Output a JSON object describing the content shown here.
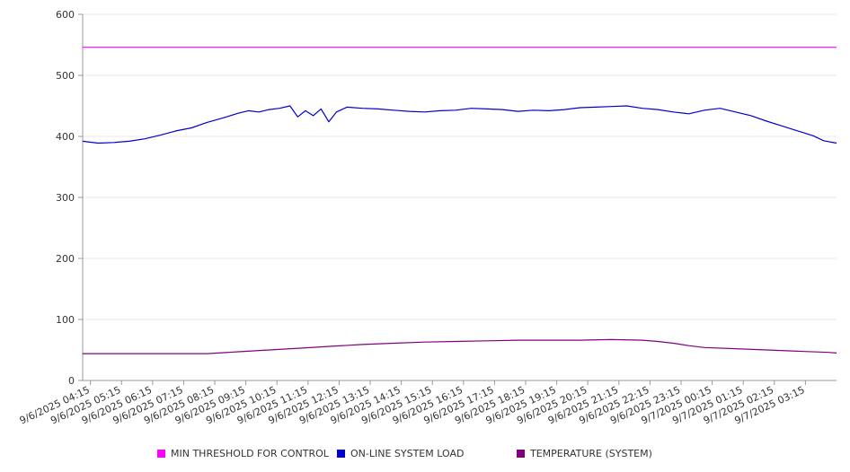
{
  "chart_data": {
    "type": "line",
    "ylim": [
      0,
      600
    ],
    "yticks": [
      0,
      100,
      200,
      300,
      400,
      500,
      600
    ],
    "x_range": [
      "9/6/2025 04:00",
      "9/7/2025 04:15"
    ],
    "xticks": [
      "9/6/2025 04:15",
      "9/6/2025 05:15",
      "9/6/2025 06:15",
      "9/6/2025 07:15",
      "9/6/2025 08:15",
      "9/6/2025 09:15",
      "9/6/2025 10:15",
      "9/6/2025 11:15",
      "9/6/2025 12:15",
      "9/6/2025 13:15",
      "9/6/2025 14:15",
      "9/6/2025 15:15",
      "9/6/2025 16:15",
      "9/6/2025 17:15",
      "9/6/2025 18:15",
      "9/6/2025 19:15",
      "9/6/2025 20:15",
      "9/6/2025 21:15",
      "9/6/2025 22:15",
      "9/6/2025 23:15",
      "9/7/2025 00:15",
      "9/7/2025 01:15",
      "9/7/2025 02:15",
      "9/7/2025 03:15"
    ],
    "grid": true,
    "legend_position": "bottom",
    "series": [
      {
        "name": "MIN THRESHOLD FOR CONTROL",
        "color": "#ff00ff",
        "points": [
          [
            "9/6/2025 04:00",
            546
          ],
          [
            "9/7/2025 04:15",
            546
          ]
        ]
      },
      {
        "name": "ON-LINE SYSTEM LOAD",
        "color": "#0000cc",
        "points": [
          [
            "9/6/2025 04:00",
            392
          ],
          [
            "9/6/2025 04:30",
            389
          ],
          [
            "9/6/2025 05:00",
            390
          ],
          [
            "9/6/2025 05:30",
            392
          ],
          [
            "9/6/2025 06:00",
            396
          ],
          [
            "9/6/2025 06:30",
            402
          ],
          [
            "9/6/2025 07:00",
            409
          ],
          [
            "9/6/2025 07:30",
            414
          ],
          [
            "9/6/2025 08:00",
            423
          ],
          [
            "9/6/2025 08:30",
            430
          ],
          [
            "9/6/2025 09:00",
            438
          ],
          [
            "9/6/2025 09:20",
            442
          ],
          [
            "9/6/2025 09:40",
            440
          ],
          [
            "9/6/2025 10:00",
            444
          ],
          [
            "9/6/2025 10:20",
            446
          ],
          [
            "9/6/2025 10:40",
            450
          ],
          [
            "9/6/2025 10:55",
            432
          ],
          [
            "9/6/2025 11:10",
            442
          ],
          [
            "9/6/2025 11:25",
            434
          ],
          [
            "9/6/2025 11:40",
            445
          ],
          [
            "9/6/2025 11:55",
            424
          ],
          [
            "9/6/2025 12:10",
            440
          ],
          [
            "9/6/2025 12:30",
            448
          ],
          [
            "9/6/2025 13:00",
            446
          ],
          [
            "9/6/2025 13:30",
            445
          ],
          [
            "9/6/2025 14:00",
            443
          ],
          [
            "9/6/2025 14:30",
            441
          ],
          [
            "9/6/2025 15:00",
            440
          ],
          [
            "9/6/2025 15:30",
            442
          ],
          [
            "9/6/2025 16:00",
            443
          ],
          [
            "9/6/2025 16:30",
            446
          ],
          [
            "9/6/2025 17:00",
            445
          ],
          [
            "9/6/2025 17:30",
            444
          ],
          [
            "9/6/2025 18:00",
            441
          ],
          [
            "9/6/2025 18:30",
            443
          ],
          [
            "9/6/2025 19:00",
            442
          ],
          [
            "9/6/2025 19:30",
            444
          ],
          [
            "9/6/2025 20:00",
            447
          ],
          [
            "9/6/2025 20:30",
            448
          ],
          [
            "9/6/2025 21:00",
            449
          ],
          [
            "9/6/2025 21:30",
            450
          ],
          [
            "9/6/2025 22:00",
            446
          ],
          [
            "9/6/2025 22:30",
            444
          ],
          [
            "9/6/2025 23:00",
            440
          ],
          [
            "9/6/2025 23:30",
            437
          ],
          [
            "9/7/2025 00:00",
            443
          ],
          [
            "9/7/2025 00:30",
            446
          ],
          [
            "9/7/2025 01:00",
            440
          ],
          [
            "9/7/2025 01:30",
            434
          ],
          [
            "9/7/2025 02:00",
            425
          ],
          [
            "9/7/2025 02:30",
            417
          ],
          [
            "9/7/2025 03:00",
            409
          ],
          [
            "9/7/2025 03:30",
            401
          ],
          [
            "9/7/2025 03:50",
            393
          ],
          [
            "9/7/2025 04:15",
            389
          ]
        ]
      },
      {
        "name": "TEMPERATURE (SYSTEM)",
        "color": "#800080",
        "points": [
          [
            "9/6/2025 04:00",
            44
          ],
          [
            "9/6/2025 06:00",
            44
          ],
          [
            "9/6/2025 08:00",
            44
          ],
          [
            "9/6/2025 09:00",
            47
          ],
          [
            "9/6/2025 10:00",
            50
          ],
          [
            "9/6/2025 11:00",
            53
          ],
          [
            "9/6/2025 12:00",
            56
          ],
          [
            "9/6/2025 13:00",
            59
          ],
          [
            "9/6/2025 14:00",
            61
          ],
          [
            "9/6/2025 15:00",
            63
          ],
          [
            "9/6/2025 16:00",
            64
          ],
          [
            "9/6/2025 17:00",
            65
          ],
          [
            "9/6/2025 18:00",
            66
          ],
          [
            "9/6/2025 19:00",
            66
          ],
          [
            "9/6/2025 20:00",
            66
          ],
          [
            "9/6/2025 21:00",
            67
          ],
          [
            "9/6/2025 22:00",
            66
          ],
          [
            "9/6/2025 22:30",
            64
          ],
          [
            "9/6/2025 23:00",
            61
          ],
          [
            "9/6/2025 23:30",
            57
          ],
          [
            "9/7/2025 00:00",
            54
          ],
          [
            "9/7/2025 01:00",
            52
          ],
          [
            "9/7/2025 02:00",
            50
          ],
          [
            "9/7/2025 03:00",
            48
          ],
          [
            "9/7/2025 04:00",
            46
          ],
          [
            "9/7/2025 04:15",
            45
          ]
        ]
      }
    ]
  }
}
